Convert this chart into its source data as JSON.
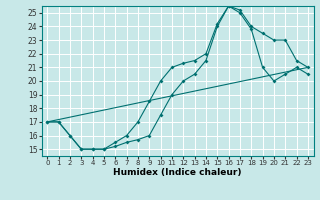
{
  "xlabel": "Humidex (Indice chaleur)",
  "bg_color": "#c8e8e8",
  "grid_color": "#ffffff",
  "line_color": "#007070",
  "xlim": [
    -0.5,
    23.5
  ],
  "ylim": [
    14.5,
    25.5
  ],
  "xticks": [
    0,
    1,
    2,
    3,
    4,
    5,
    6,
    7,
    8,
    9,
    10,
    11,
    12,
    13,
    14,
    15,
    16,
    17,
    18,
    19,
    20,
    21,
    22,
    23
  ],
  "yticks": [
    15,
    16,
    17,
    18,
    19,
    20,
    21,
    22,
    23,
    24,
    25
  ],
  "line1_x": [
    0,
    1,
    2,
    3,
    4,
    5,
    6,
    7,
    8,
    9,
    10,
    11,
    12,
    13,
    14,
    15,
    16,
    17,
    18,
    19,
    20,
    21,
    22,
    23
  ],
  "line1_y": [
    17,
    17,
    16,
    15,
    15,
    15,
    15.5,
    16,
    17,
    18.5,
    20,
    21,
    21.3,
    21.5,
    22,
    24.2,
    25.5,
    25.2,
    24,
    23.5,
    23,
    23,
    21.5,
    21
  ],
  "line2_x": [
    0,
    1,
    2,
    3,
    4,
    5,
    6,
    7,
    8,
    9,
    10,
    11,
    12,
    13,
    14,
    15,
    16,
    17,
    18,
    19,
    20,
    21,
    22,
    23
  ],
  "line2_y": [
    17,
    17,
    16,
    15,
    15,
    15,
    15.2,
    15.5,
    15.7,
    16,
    17.5,
    19,
    20,
    20.5,
    21.5,
    24,
    25.5,
    25,
    23.8,
    21,
    20,
    20.5,
    21,
    20.5
  ],
  "line3_x": [
    0,
    23
  ],
  "line3_y": [
    17,
    21
  ]
}
